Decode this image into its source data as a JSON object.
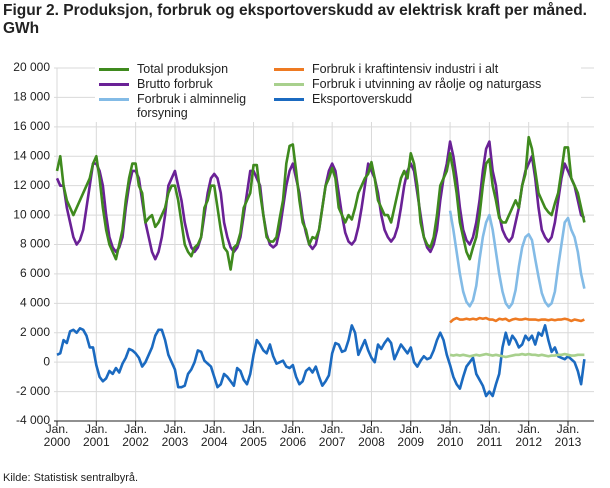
{
  "chart_data": {
    "type": "line",
    "title": "Figur 2. Produksjon, forbruk og eksportoverskudd av elektrisk kraft per måned. GWh",
    "source": "Kilde: Statistisk sentralbyrå.",
    "categories": [
      "Jan. 2000",
      null,
      null,
      null,
      null,
      null,
      null,
      null,
      null,
      null,
      null,
      null,
      "Jan. 2001",
      null,
      null,
      null,
      null,
      null,
      null,
      null,
      null,
      null,
      null,
      null,
      "Jan. 2002",
      null,
      null,
      null,
      null,
      null,
      null,
      null,
      null,
      null,
      null,
      null,
      "Jan. 2003",
      null,
      null,
      null,
      null,
      null,
      null,
      null,
      null,
      null,
      null,
      null,
      "Jan. 2004",
      null,
      null,
      null,
      null,
      null,
      null,
      null,
      null,
      null,
      null,
      null,
      "Jan. 2005",
      null,
      null,
      null,
      null,
      null,
      null,
      null,
      null,
      null,
      null,
      null,
      "Jan. 2006",
      null,
      null,
      null,
      null,
      null,
      null,
      null,
      null,
      null,
      null,
      null,
      "Jan. 2007",
      null,
      null,
      null,
      null,
      null,
      null,
      null,
      null,
      null,
      null,
      null,
      "Jan. 2008",
      null,
      null,
      null,
      null,
      null,
      null,
      null,
      null,
      null,
      null,
      null,
      "Jan. 2009",
      null,
      null,
      null,
      null,
      null,
      null,
      null,
      null,
      null,
      null,
      null,
      "Jan. 2010",
      null,
      null,
      null,
      null,
      null,
      null,
      null,
      null,
      null,
      null,
      null,
      "Jan. 2011",
      null,
      null,
      null,
      null,
      null,
      null,
      null,
      null,
      null,
      null,
      null,
      "Jan. 2012",
      null,
      null,
      null,
      null,
      null,
      null,
      null,
      null,
      null,
      null,
      null,
      "Jan. 2013",
      null,
      null,
      null,
      null,
      null
    ],
    "ylim": [
      -4000,
      20000
    ],
    "yticks": [
      {
        "value": -4000,
        "label": "-4 000"
      },
      {
        "value": -2000,
        "label": "-2 000"
      },
      0,
      {
        "value": 2000,
        "label": "2 000"
      },
      {
        "value": 4000,
        "label": "4 000"
      },
      {
        "value": 6000,
        "label": "6 000"
      },
      {
        "value": 8000,
        "label": "8 000"
      },
      {
        "value": 10000,
        "label": "10 000"
      },
      {
        "value": 12000,
        "label": "12 000"
      },
      {
        "value": 14000,
        "label": "14 000"
      },
      {
        "value": 16000,
        "label": "16 000"
      },
      {
        "value": 18000,
        "label": "18 000"
      },
      {
        "value": 20000,
        "label": "20 000"
      }
    ],
    "grid": true,
    "legend": "top",
    "series": [
      {
        "name": "Total produksjon",
        "color": "#3f8a1e",
        "values": [
          13000,
          14000,
          12000,
          11000,
          10500,
          10000,
          10500,
          11000,
          11500,
          12000,
          12500,
          13500,
          14000,
          12500,
          10500,
          9000,
          8000,
          7500,
          7000,
          8000,
          9000,
          11000,
          12500,
          13500,
          13500,
          12000,
          11500,
          9500,
          9800,
          10000,
          9200,
          9500,
          10000,
          10500,
          11500,
          12000,
          12000,
          11000,
          9500,
          8000,
          7500,
          7200,
          7800,
          8000,
          8500,
          10500,
          11000,
          12000,
          12000,
          10500,
          9000,
          7800,
          7500,
          6300,
          7800,
          8000,
          8800,
          10500,
          11000,
          11500,
          13400,
          13400,
          11500,
          10000,
          8500,
          8200,
          8200,
          8500,
          9800,
          11000,
          13500,
          14700,
          14800,
          13000,
          11000,
          9500,
          9000,
          8000,
          8500,
          8400,
          9000,
          10500,
          12000,
          12500,
          13200,
          12500,
          10500,
          10000,
          9500,
          10000,
          9700,
          10500,
          11500,
          12000,
          12500,
          12800,
          13600,
          12500,
          11000,
          10500,
          10000,
          10000,
          9500,
          10500,
          11500,
          12500,
          13000,
          12500,
          14200,
          13500,
          12000,
          9500,
          8500,
          8000,
          7800,
          8500,
          10000,
          12000,
          12500,
          13000,
          14200,
          13000,
          11500,
          9500,
          8500,
          7500,
          7000,
          7800,
          8500,
          10000,
          12000,
          13500,
          13800,
          12000,
          11000,
          9800,
          9500,
          9500,
          10000,
          10500,
          11000,
          10500,
          12000,
          12800,
          15300,
          14500,
          13000,
          11500,
          11000,
          10500,
          10200,
          10000,
          10800,
          11500,
          13000,
          14600,
          14600,
          12500,
          12000,
          11500,
          10500,
          9500
        ]
      },
      {
        "name": "Forbruk i kraftintensiv industri i alt",
        "color": "#ee7a22",
        "values": [
          null,
          null,
          null,
          null,
          null,
          null,
          null,
          null,
          null,
          null,
          null,
          null,
          null,
          null,
          null,
          null,
          null,
          null,
          null,
          null,
          null,
          null,
          null,
          null,
          null,
          null,
          null,
          null,
          null,
          null,
          null,
          null,
          null,
          null,
          null,
          null,
          null,
          null,
          null,
          null,
          null,
          null,
          null,
          null,
          null,
          null,
          null,
          null,
          null,
          null,
          null,
          null,
          null,
          null,
          null,
          null,
          null,
          null,
          null,
          null,
          null,
          null,
          null,
          null,
          null,
          null,
          null,
          null,
          null,
          null,
          null,
          null,
          null,
          null,
          null,
          null,
          null,
          null,
          null,
          null,
          null,
          null,
          null,
          null,
          null,
          null,
          null,
          null,
          null,
          null,
          null,
          null,
          null,
          null,
          null,
          null,
          null,
          null,
          null,
          null,
          null,
          null,
          null,
          null,
          null,
          null,
          null,
          null,
          null,
          null,
          null,
          null,
          null,
          null,
          null,
          null,
          null,
          null,
          null,
          null,
          2700,
          2900,
          3000,
          2900,
          2900,
          2950,
          2900,
          2950,
          2900,
          3000,
          2950,
          3000,
          2900,
          2900,
          2800,
          2950,
          2900,
          2950,
          2800,
          2900,
          2950,
          2900,
          2900,
          2950,
          2900,
          2900,
          2900,
          2850,
          2900,
          2900,
          2850,
          2900,
          2850,
          2900,
          2900,
          2950,
          2900,
          2800,
          2900,
          2850,
          2800,
          2900
        ]
      },
      {
        "name": "Brutto forbruk",
        "color": "#6a2196",
        "values": [
          12500,
          12000,
          12000,
          10500,
          9500,
          8500,
          8000,
          8300,
          9000,
          10500,
          12000,
          13500,
          13500,
          13000,
          12000,
          10000,
          8500,
          7800,
          7500,
          7800,
          8500,
          10500,
          12000,
          13000,
          13000,
          12500,
          11000,
          9500,
          8500,
          7500,
          7000,
          7500,
          8500,
          10000,
          12000,
          12500,
          13000,
          12000,
          11000,
          9500,
          8500,
          7800,
          7500,
          7800,
          8500,
          10000,
          11500,
          12500,
          12800,
          12500,
          11500,
          9500,
          8500,
          7800,
          7500,
          7800,
          8500,
          10000,
          11500,
          13000,
          13000,
          12500,
          12000,
          10000,
          8700,
          8000,
          7800,
          8000,
          9000,
          10500,
          12000,
          13000,
          13500,
          12500,
          11500,
          9800,
          8800,
          8000,
          7700,
          8000,
          9000,
          10500,
          12000,
          13000,
          13500,
          13000,
          11500,
          10000,
          8800,
          8200,
          8000,
          8300,
          9200,
          10500,
          12000,
          13500,
          13000,
          12500,
          11500,
          10000,
          9000,
          8500,
          8200,
          8500,
          9200,
          10500,
          12000,
          13000,
          13500,
          13000,
          11500,
          10000,
          8500,
          7800,
          7500,
          8000,
          9000,
          11000,
          12500,
          13500,
          15000,
          14000,
          12500,
          10500,
          9000,
          8300,
          8000,
          8500,
          9500,
          11000,
          13000,
          14500,
          15000,
          13000,
          12000,
          10000,
          9000,
          8500,
          8200,
          8500,
          9500,
          10500,
          12000,
          13000,
          13500,
          14000,
          12500,
          10500,
          9000,
          8500,
          8200,
          8500,
          9500,
          11000,
          12500,
          13500,
          13000,
          12500,
          12000,
          11000,
          10000,
          9800
        ]
      },
      {
        "name": "Forbruk i utvinning av råolje og naturgass",
        "color": "#a8d08d",
        "values": [
          null,
          null,
          null,
          null,
          null,
          null,
          null,
          null,
          null,
          null,
          null,
          null,
          null,
          null,
          null,
          null,
          null,
          null,
          null,
          null,
          null,
          null,
          null,
          null,
          null,
          null,
          null,
          null,
          null,
          null,
          null,
          null,
          null,
          null,
          null,
          null,
          null,
          null,
          null,
          null,
          null,
          null,
          null,
          null,
          null,
          null,
          null,
          null,
          null,
          null,
          null,
          null,
          null,
          null,
          null,
          null,
          null,
          null,
          null,
          null,
          null,
          null,
          null,
          null,
          null,
          null,
          null,
          null,
          null,
          null,
          null,
          null,
          null,
          null,
          null,
          null,
          null,
          null,
          null,
          null,
          null,
          null,
          null,
          null,
          null,
          null,
          null,
          null,
          null,
          null,
          null,
          null,
          null,
          null,
          null,
          null,
          null,
          null,
          null,
          null,
          null,
          null,
          null,
          null,
          null,
          null,
          null,
          null,
          null,
          null,
          null,
          null,
          null,
          null,
          null,
          null,
          null,
          null,
          null,
          null,
          500,
          450,
          500,
          450,
          500,
          450,
          400,
          450,
          500,
          450,
          500,
          550,
          500,
          450,
          500,
          450,
          400,
          350,
          400,
          450,
          500,
          500,
          550,
          500,
          550,
          500,
          500,
          450,
          500,
          450,
          400,
          450,
          450,
          500,
          500,
          550,
          500,
          450,
          450,
          500,
          500,
          500
        ]
      },
      {
        "name": "Forbruk i alminnelig forsyning",
        "color": "#83bbe6",
        "values": [
          null,
          null,
          null,
          null,
          null,
          null,
          null,
          null,
          null,
          null,
          null,
          null,
          null,
          null,
          null,
          null,
          null,
          null,
          null,
          null,
          null,
          null,
          null,
          null,
          null,
          null,
          null,
          null,
          null,
          null,
          null,
          null,
          null,
          null,
          null,
          null,
          null,
          null,
          null,
          null,
          null,
          null,
          null,
          null,
          null,
          null,
          null,
          null,
          null,
          null,
          null,
          null,
          null,
          null,
          null,
          null,
          null,
          null,
          null,
          null,
          null,
          null,
          null,
          null,
          null,
          null,
          null,
          null,
          null,
          null,
          null,
          null,
          null,
          null,
          null,
          null,
          null,
          null,
          null,
          null,
          null,
          null,
          null,
          null,
          null,
          null,
          null,
          null,
          null,
          null,
          null,
          null,
          null,
          null,
          null,
          null,
          null,
          null,
          null,
          null,
          null,
          null,
          null,
          null,
          null,
          null,
          null,
          null,
          null,
          null,
          null,
          null,
          null,
          null,
          null,
          null,
          null,
          null,
          null,
          null,
          10300,
          9000,
          7500,
          6000,
          4800,
          4100,
          3800,
          4200,
          5200,
          7000,
          8500,
          9500,
          10000,
          9000,
          7500,
          6000,
          4800,
          4000,
          3700,
          4000,
          4900,
          6500,
          7800,
          8500,
          8700,
          8300,
          7000,
          5800,
          4700,
          4100,
          3800,
          4000,
          4800,
          6500,
          8000,
          9500,
          9800,
          9000,
          8500,
          7500,
          6000,
          5000
        ]
      },
      {
        "name": "Eksportoverskudd",
        "color": "#1b6ac0",
        "values": [
          500,
          600,
          1500,
          1300,
          2100,
          2200,
          2000,
          2300,
          2200,
          1800,
          1000,
          1000,
          -200,
          -1000,
          -1300,
          -1100,
          -600,
          -800,
          -400,
          -700,
          -100,
          300,
          900,
          800,
          600,
          300,
          -300,
          0,
          500,
          1000,
          1800,
          2200,
          2200,
          1500,
          500,
          0,
          -500,
          -1700,
          -1700,
          -1600,
          -800,
          -500,
          0,
          800,
          700,
          100,
          -100,
          -300,
          -1000,
          -1700,
          -1500,
          -800,
          -1000,
          -1300,
          -1600,
          -400,
          -600,
          -1200,
          -1500,
          -800,
          500,
          1500,
          1200,
          800,
          600,
          1200,
          400,
          -100,
          0,
          100,
          -300,
          -400,
          -200,
          -1000,
          -1500,
          -1300,
          -600,
          -400,
          -700,
          -300,
          -1000,
          -1600,
          -1300,
          -900,
          600,
          1300,
          1200,
          700,
          800,
          1500,
          2500,
          2000,
          500,
          1000,
          1500,
          800,
          300,
          0,
          1200,
          900,
          1300,
          1600,
          1300,
          200,
          700,
          1200,
          900,
          600,
          1000,
          0,
          -300,
          100,
          400,
          200,
          300,
          800,
          1500,
          2000,
          1500,
          500,
          -200,
          -1000,
          -1500,
          -1800,
          -1000,
          -300,
          0,
          300,
          -800,
          -1200,
          -1600,
          -2300,
          -2000,
          -2300,
          -1500,
          -800,
          1000,
          2000,
          1200,
          1800,
          1500,
          1000,
          1200,
          1800,
          1500,
          1800,
          1200,
          2000,
          1800,
          2500,
          1500,
          700,
          1000,
          400,
          300,
          200,
          400,
          200,
          0,
          -600,
          -1500,
          200
        ]
      }
    ]
  }
}
